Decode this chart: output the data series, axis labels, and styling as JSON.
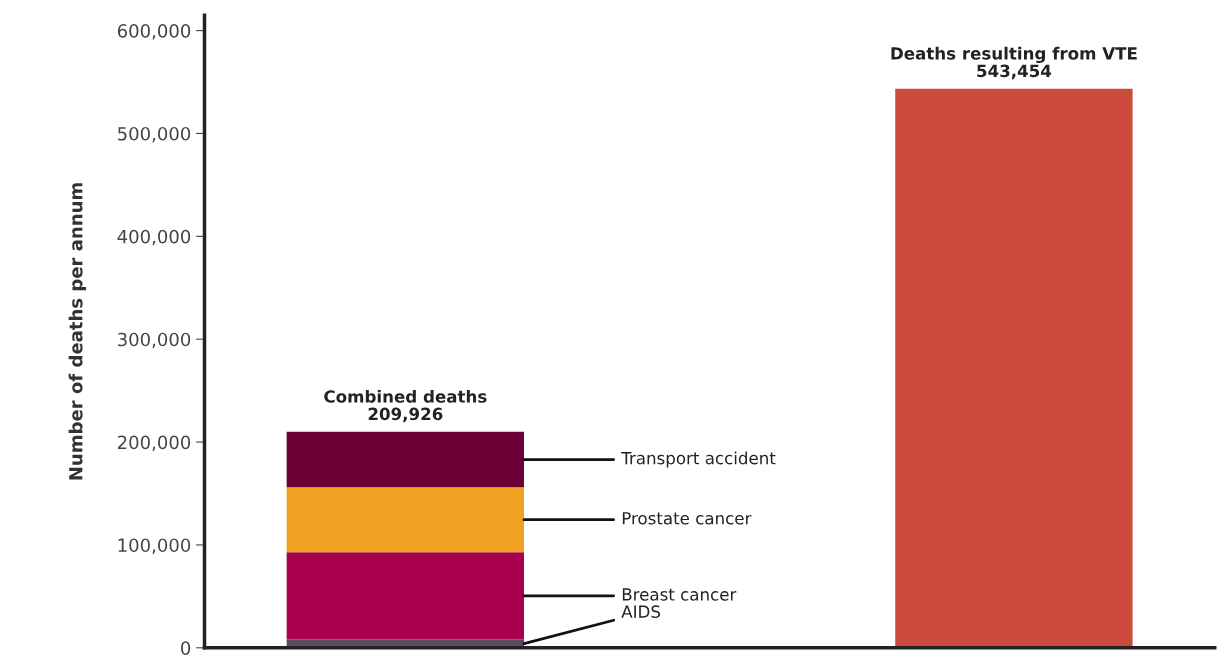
{
  "chart_data": {
    "type": "bar",
    "stacked": true,
    "ylabel": "Number of deaths per annum",
    "categories": [
      null,
      null
    ],
    "series": [
      {
        "name": "AIDS",
        "color": "#5c4a5e",
        "values": [
          8000,
          null
        ]
      },
      {
        "name": "Breast cancer",
        "color": "#a8004f",
        "values": [
          85000,
          null
        ]
      },
      {
        "name": "Prostate cancer",
        "color": "#f0a023",
        "values": [
          63000,
          null
        ]
      },
      {
        "name": "Transport accident",
        "color": "#6d0036",
        "values": [
          54000,
          null
        ]
      },
      {
        "color": "#cc4a3c",
        "values": [
          null,
          543454
        ]
      }
    ],
    "totals": [
      "Combined deaths\n209,926",
      "Deaths resulting from VTE\n543,454"
    ],
    "ylim": [
      0,
      615000
    ],
    "yticks": [
      {
        "value": 0,
        "label": "0"
      },
      {
        "value": 100000,
        "label": "100,000"
      },
      {
        "value": 200000,
        "label": "200,000"
      },
      {
        "value": 300000,
        "label": "300,000"
      },
      {
        "value": 400000,
        "label": "400,000"
      },
      {
        "value": 500000,
        "label": "500,000"
      },
      {
        "value": 600000,
        "label": "600,000"
      }
    ],
    "tick_labels": "y",
    "grid": false,
    "legend": false
  }
}
